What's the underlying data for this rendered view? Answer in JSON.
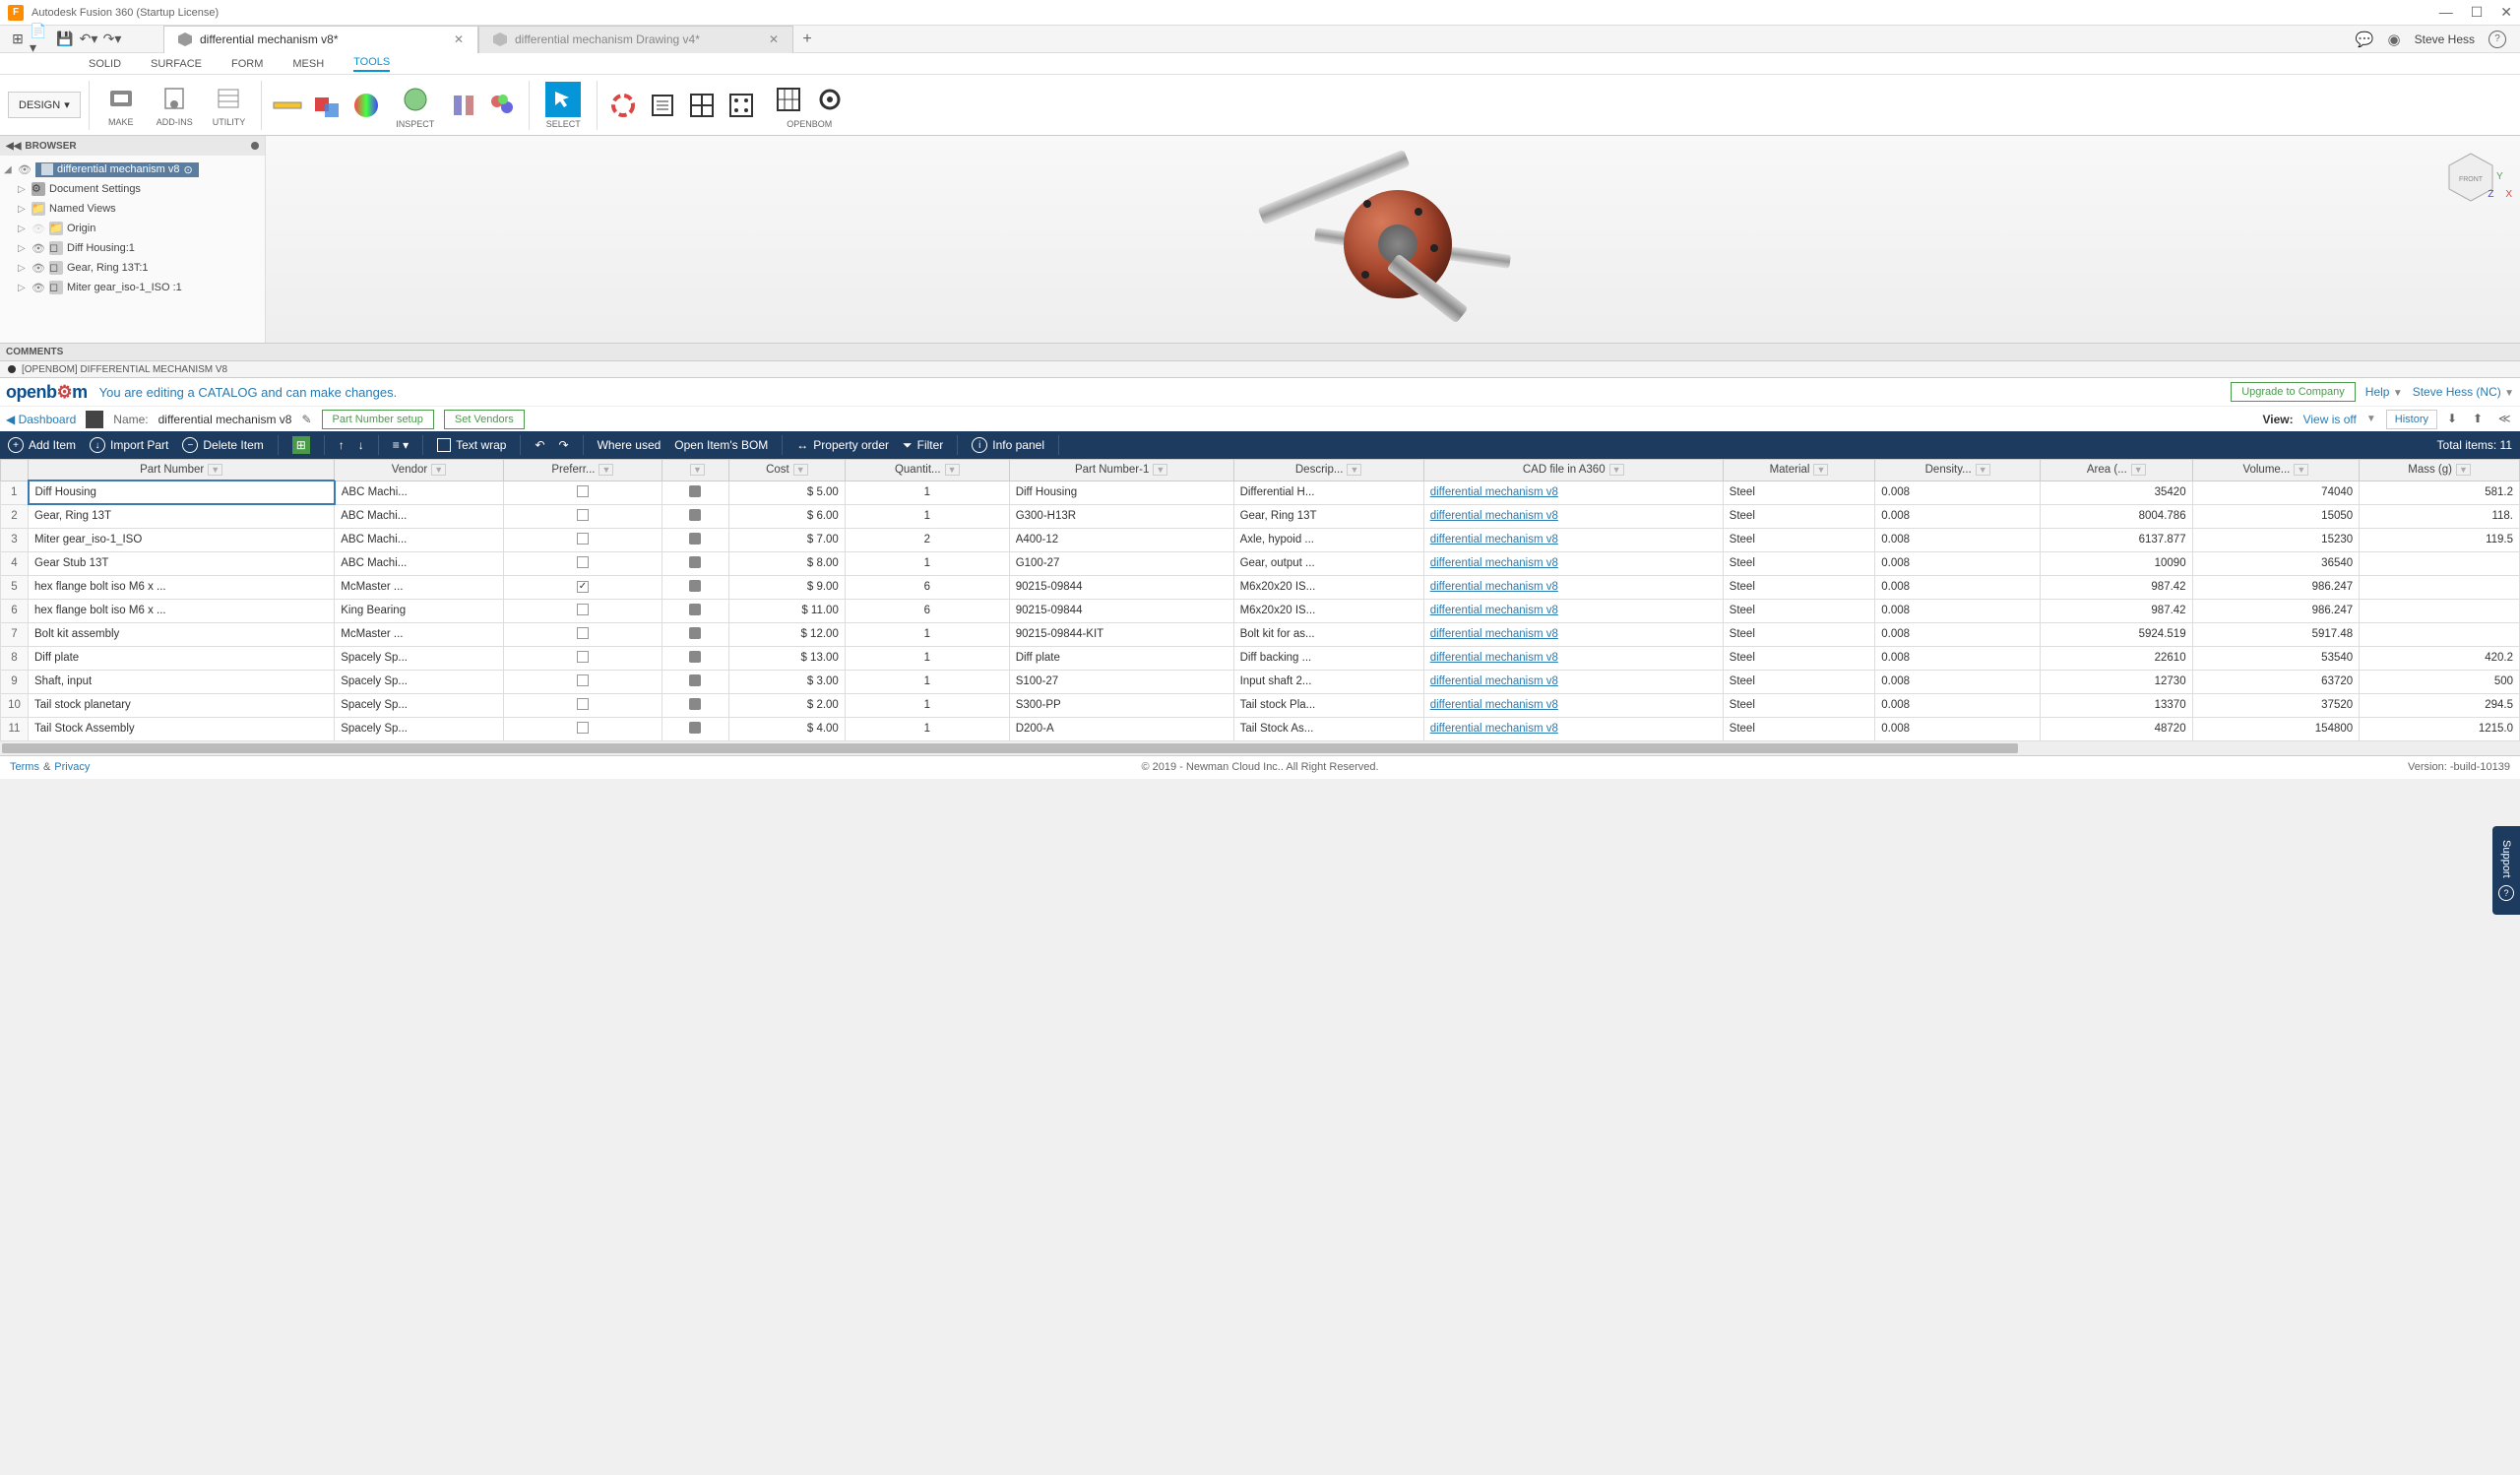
{
  "window": {
    "app_title": "Autodesk Fusion 360 (Startup License)",
    "tabs": [
      {
        "label": "differential mechanism v8*",
        "active": true
      },
      {
        "label": "differential mechanism Drawing v4*",
        "active": false
      }
    ],
    "user": "Steve Hess"
  },
  "ribbon": {
    "workspace": "DESIGN",
    "tabs": [
      "SOLID",
      "SURFACE",
      "FORM",
      "MESH",
      "TOOLS"
    ],
    "active_tab": "TOOLS",
    "groups": {
      "make": "MAKE",
      "addins": "ADD-INS",
      "utility": "UTILITY",
      "inspect": "INSPECT",
      "select": "SELECT",
      "openbom": "OPENBOM"
    }
  },
  "browser": {
    "title": "BROWSER",
    "root": "differential mechanism v8",
    "nodes": [
      "Document Settings",
      "Named Views",
      "Origin",
      "Diff Housing:1",
      "Gear, Ring 13T:1",
      "Miter gear_iso-1_ISO :1"
    ]
  },
  "comments_label": "COMMENTS",
  "openbom_panel_title": "[OPENBOM] DIFFERENTIAL MECHANISM V8",
  "openbom": {
    "logo": "openbom",
    "message": "You are editing a CATALOG and can make changes.",
    "upgrade": "Upgrade to Company",
    "help": "Help",
    "user": "Steve Hess (NC)",
    "dashboard": "Dashboard",
    "name_label": "Name:",
    "doc_name": "differential mechanism v8",
    "part_number_setup": "Part Number setup",
    "set_vendors": "Set Vendors",
    "view_label": "View:",
    "view_state": "View is off",
    "history": "History",
    "toolbar": {
      "add_item": "Add Item",
      "import_part": "Import Part",
      "delete_item": "Delete Item",
      "text_wrap": "Text wrap",
      "where_used": "Where used",
      "open_bom": "Open Item's BOM",
      "property_order": "Property order",
      "filter": "Filter",
      "info_panel": "Info panel",
      "total_items": "Total items: 11"
    },
    "columns": [
      "Part Number",
      "Vendor",
      "Preferr...",
      "",
      "Cost",
      "Quantit...",
      "Part Number-1",
      "Descrip...",
      "CAD file in A360",
      "Material",
      "Density...",
      "Area (...",
      "Volume...",
      "Mass (g)"
    ],
    "rows": [
      {
        "n": 1,
        "part": "Diff Housing",
        "vendor": "ABC Machi...",
        "pref": false,
        "cost": "$ 5.00",
        "qty": 1,
        "pn1": "Diff Housing",
        "desc": "Differential H...",
        "cad": "differential mechanism v8",
        "mat": "Steel",
        "dens": "0.008",
        "area": "35420",
        "vol": "74040",
        "mass": "581.2"
      },
      {
        "n": 2,
        "part": "Gear, Ring 13T",
        "vendor": "ABC Machi...",
        "pref": false,
        "cost": "$ 6.00",
        "qty": 1,
        "pn1": "G300-H13R",
        "desc": "Gear, Ring 13T",
        "cad": "differential mechanism v8",
        "mat": "Steel",
        "dens": "0.008",
        "area": "8004.786",
        "vol": "15050",
        "mass": "118."
      },
      {
        "n": 3,
        "part": "Miter gear_iso-1_ISO",
        "vendor": "ABC Machi...",
        "pref": false,
        "cost": "$ 7.00",
        "qty": 2,
        "pn1": "A400-12",
        "desc": "Axle, hypoid ...",
        "cad": "differential mechanism v8",
        "mat": "Steel",
        "dens": "0.008",
        "area": "6137.877",
        "vol": "15230",
        "mass": "119.5"
      },
      {
        "n": 4,
        "part": "Gear Stub 13T",
        "vendor": "ABC Machi...",
        "pref": false,
        "cost": "$ 8.00",
        "qty": 1,
        "pn1": "G100-27",
        "desc": "Gear, output ...",
        "cad": "differential mechanism v8",
        "mat": "Steel",
        "dens": "0.008",
        "area": "10090",
        "vol": "36540",
        "mass": ""
      },
      {
        "n": 5,
        "part": "hex flange bolt iso M6 x ...",
        "vendor": "McMaster ...",
        "pref": true,
        "cost": "$ 9.00",
        "qty": 6,
        "pn1": "90215-09844",
        "desc": "M6x20x20 IS...",
        "cad": "differential mechanism v8",
        "mat": "Steel",
        "dens": "0.008",
        "area": "987.42",
        "vol": "986.247",
        "mass": ""
      },
      {
        "n": 6,
        "part": "hex flange bolt iso M6 x ...",
        "vendor": "King Bearing",
        "pref": false,
        "cost": "$ 11.00",
        "qty": 6,
        "pn1": "90215-09844",
        "desc": "M6x20x20 IS...",
        "cad": "differential mechanism v8",
        "mat": "Steel",
        "dens": "0.008",
        "area": "987.42",
        "vol": "986.247",
        "mass": ""
      },
      {
        "n": 7,
        "part": "Bolt kit assembly",
        "vendor": "McMaster ...",
        "pref": false,
        "cost": "$ 12.00",
        "qty": 1,
        "pn1": "90215-09844-KIT",
        "desc": "Bolt kit for as...",
        "cad": "differential mechanism v8",
        "mat": "Steel",
        "dens": "0.008",
        "area": "5924.519",
        "vol": "5917.48",
        "mass": ""
      },
      {
        "n": 8,
        "part": "Diff plate",
        "vendor": "Spacely Sp...",
        "pref": false,
        "cost": "$ 13.00",
        "qty": 1,
        "pn1": "Diff plate",
        "desc": "Diff backing ...",
        "cad": "differential mechanism v8",
        "mat": "Steel",
        "dens": "0.008",
        "area": "22610",
        "vol": "53540",
        "mass": "420.2"
      },
      {
        "n": 9,
        "part": "Shaft, input",
        "vendor": "Spacely Sp...",
        "pref": false,
        "cost": "$ 3.00",
        "qty": 1,
        "pn1": "S100-27",
        "desc": "Input shaft 2...",
        "cad": "differential mechanism v8",
        "mat": "Steel",
        "dens": "0.008",
        "area": "12730",
        "vol": "63720",
        "mass": "500"
      },
      {
        "n": 10,
        "part": "Tail stock planetary",
        "vendor": "Spacely Sp...",
        "pref": false,
        "cost": "$ 2.00",
        "qty": 1,
        "pn1": "S300-PP",
        "desc": "Tail stock Pla...",
        "cad": "differential mechanism v8",
        "mat": "Steel",
        "dens": "0.008",
        "area": "13370",
        "vol": "37520",
        "mass": "294.5"
      },
      {
        "n": 11,
        "part": "Tail Stock Assembly",
        "vendor": "Spacely Sp...",
        "pref": false,
        "cost": "$ 4.00",
        "qty": 1,
        "pn1": "D200-A",
        "desc": "Tail Stock As...",
        "cad": "differential mechanism v8",
        "mat": "Steel",
        "dens": "0.008",
        "area": "48720",
        "vol": "154800",
        "mass": "1215.0"
      }
    ]
  },
  "footer": {
    "terms": "Terms",
    "amp": "&",
    "privacy": "Privacy",
    "copyright": "© 2019 - Newman Cloud Inc.. All Right Reserved.",
    "version": "Version: -build-10139"
  },
  "support_tab": "Support"
}
